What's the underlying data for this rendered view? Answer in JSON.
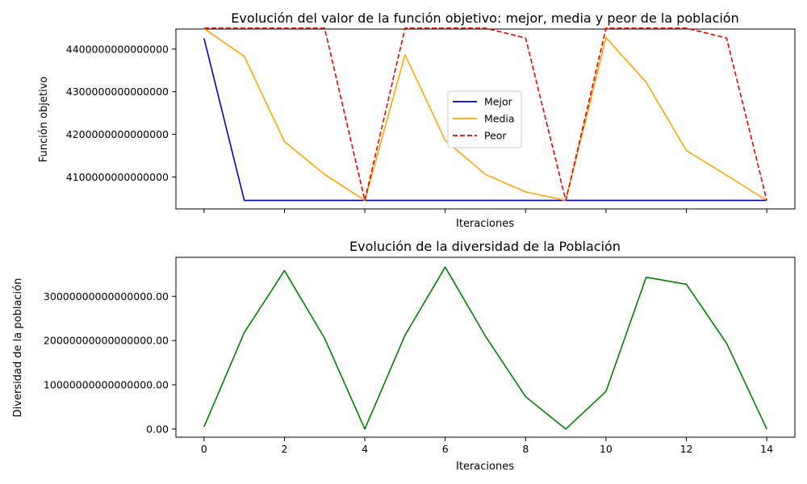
{
  "chart_data": [
    {
      "type": "line",
      "title": "Evolución del valor de la función objetivo: mejor, media y peor de la población",
      "xlabel": "Iteraciones",
      "ylabel": "Función objetivo",
      "x": [
        0,
        1,
        2,
        3,
        4,
        5,
        6,
        7,
        8,
        9,
        10,
        11,
        12,
        13,
        14
      ],
      "xlim": [
        -0.7,
        14.7
      ],
      "ylim": [
        4025000000000000,
        4447000000000000
      ],
      "x_ticks_labeled": false,
      "y_ticks": [
        4100000000000000,
        4200000000000000,
        4300000000000000,
        4400000000000000
      ],
      "y_tick_labels": [
        "4100000000000000",
        "4200000000000000",
        "4300000000000000",
        "4400000000000000"
      ],
      "legend_position": "center-right",
      "grid": false,
      "series": [
        {
          "name": "Mejor",
          "color": "#0000cc",
          "dash": "solid",
          "values": [
            4425000000000000,
            4045000000000000,
            4045000000000000,
            4045000000000000,
            4045000000000000,
            4045000000000000,
            4045000000000000,
            4045000000000000,
            4045000000000000,
            4045000000000000,
            4045000000000000,
            4045000000000000,
            4045000000000000,
            4045000000000000,
            4045000000000000
          ]
        },
        {
          "name": "Media",
          "color": "#ffa500",
          "dash": "solid",
          "values": [
            4448000000000000,
            4383000000000000,
            4183000000000000,
            4106000000000000,
            4045000000000000,
            4387000000000000,
            4186000000000000,
            4106000000000000,
            4065000000000000,
            4045000000000000,
            4427000000000000,
            4322000000000000,
            4162000000000000,
            4104000000000000,
            4045000000000000
          ]
        },
        {
          "name": "Peor",
          "color": "#ee0000",
          "dash": "dashed",
          "values": [
            4449000000000000,
            4449000000000000,
            4449000000000000,
            4449000000000000,
            4045000000000000,
            4449000000000000,
            4449000000000000,
            4449000000000000,
            4426000000000000,
            4045000000000000,
            4449000000000000,
            4449000000000000,
            4449000000000000,
            4426000000000000,
            4045000000000000
          ]
        }
      ]
    },
    {
      "type": "line",
      "title": "Evolución de la diversidad de la Población",
      "xlabel": "Iteraciones",
      "ylabel": "Diversidad de la población",
      "x": [
        0,
        1,
        2,
        3,
        4,
        5,
        6,
        7,
        8,
        9,
        10,
        11,
        12,
        13,
        14
      ],
      "xlim": [
        -0.7,
        14.7
      ],
      "ylim": [
        -1850000000000000,
        38800000000000000
      ],
      "x_ticks": [
        0,
        2,
        4,
        6,
        8,
        10,
        12,
        14
      ],
      "x_tick_labels": [
        "0",
        "2",
        "4",
        "6",
        "8",
        "10",
        "12",
        "14"
      ],
      "y_ticks": [
        0,
        10000000000000000,
        20000000000000000,
        30000000000000000
      ],
      "y_tick_labels": [
        "0.00",
        "10000000000000000.00",
        "20000000000000000.00",
        "30000000000000000.00"
      ],
      "grid": false,
      "series": [
        {
          "color": "#008000",
          "dash": "solid",
          "values": [
            500000000000000,
            21800000000000000,
            35800000000000000,
            20500000000000000,
            0,
            21200000000000000,
            36600000000000000,
            21000000000000000,
            7300000000000000,
            0,
            8500000000000000,
            34300000000000000,
            32700000000000000,
            19400000000000000,
            0
          ]
        }
      ]
    }
  ]
}
